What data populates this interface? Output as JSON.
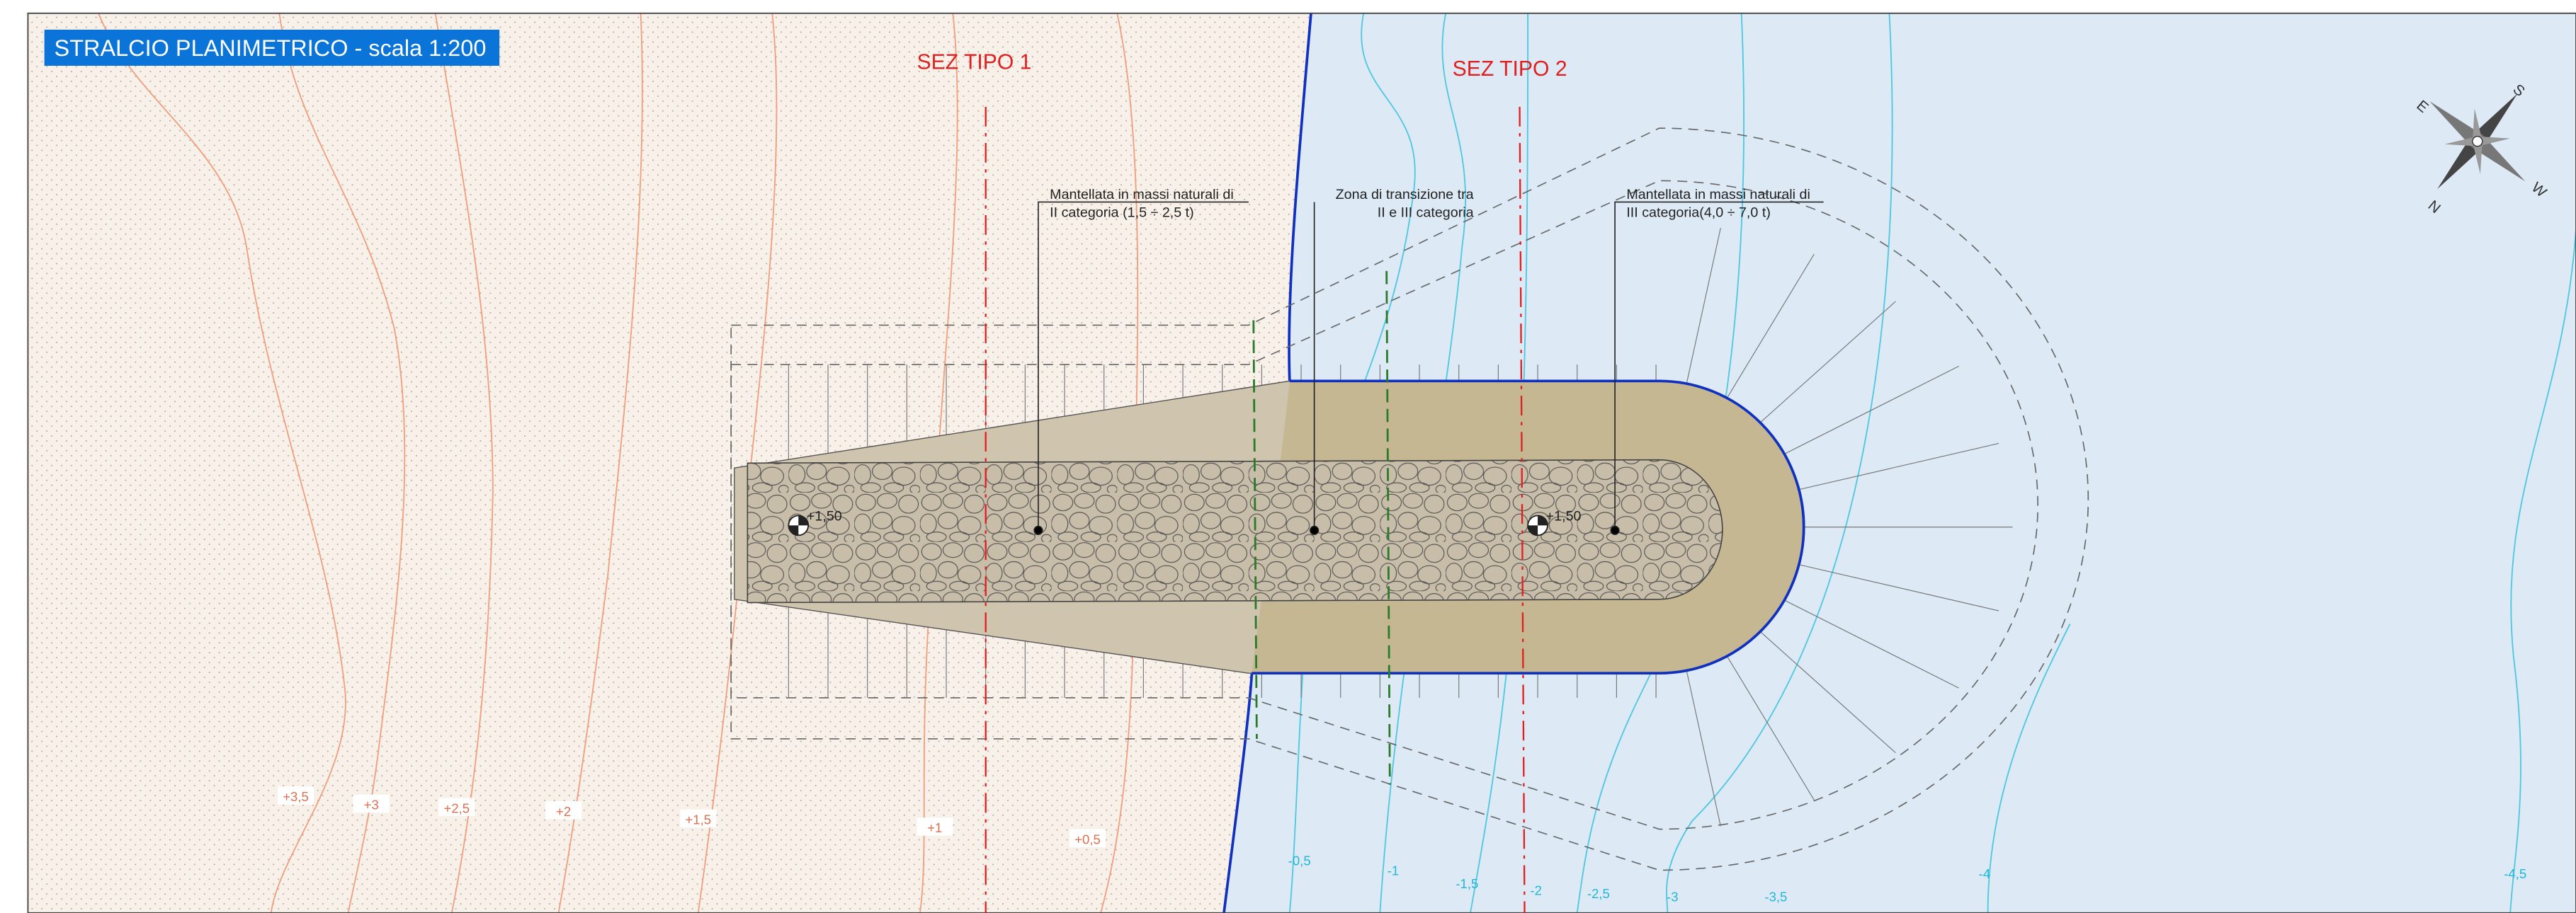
{
  "title": "STRALCIO PLANIMETRICO - scala 1:200",
  "sections": [
    "SEZ TIPO 1",
    "SEZ TIPO 2"
  ],
  "annotations": [
    {
      "line1": "Mantellata in massi naturali di",
      "line2": "II categoria (1,5 ÷ 2,5 t)"
    },
    {
      "line1": "Zona di transizione tra",
      "line2": "II e III categoria"
    },
    {
      "line1": "Mantellata in massi naturali di",
      "line2": "III categoria(4,0 ÷ 7,0 t)"
    }
  ],
  "elevations": [
    "+1,50",
    "+1,50"
  ],
  "land_contours": [
    "+3,5",
    "+3",
    "+2,5",
    "+2",
    "+1,5",
    "+1",
    "+0,5"
  ],
  "sea_contours": [
    "-0,5",
    "-1",
    "-1,5",
    "-2",
    "-2,5",
    "-3",
    "-3,5",
    "-4",
    "-4,5"
  ],
  "compass": [
    "E",
    "S",
    "W",
    "N"
  ]
}
